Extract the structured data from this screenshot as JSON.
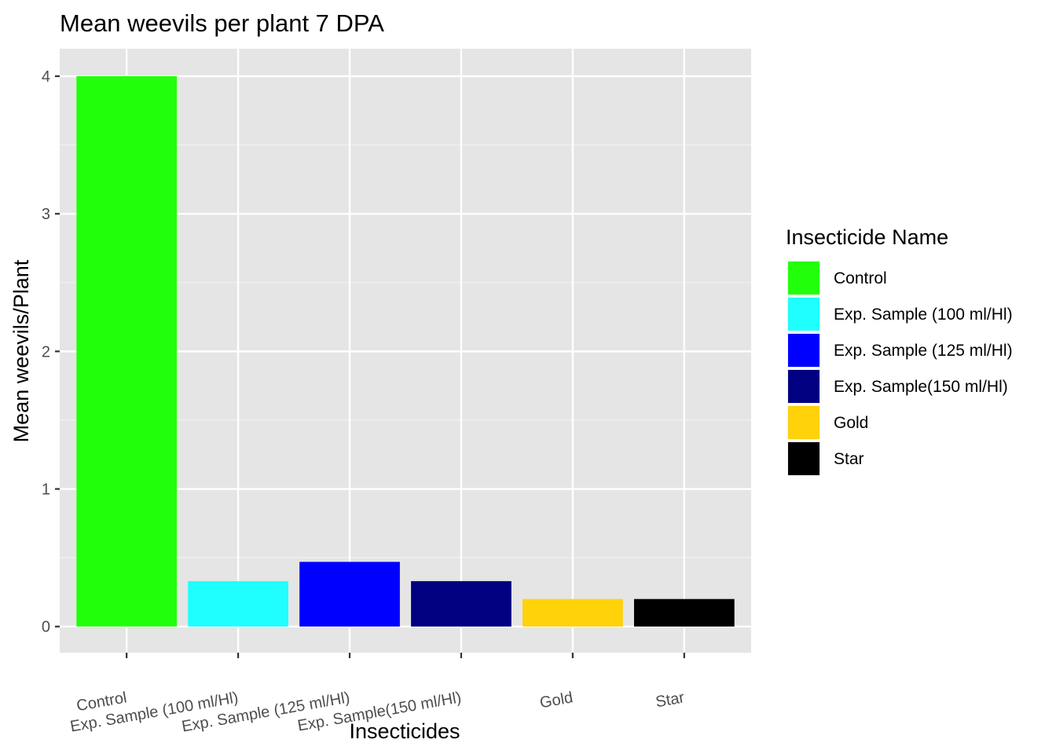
{
  "chart_data": {
    "type": "bar",
    "title": "Mean weevils per plant 7 DPA",
    "xlabel": "Insecticides",
    "ylabel": "Mean weevils/Plant",
    "categories": [
      "Control",
      "Exp. Sample (100 ml/Hl)",
      "Exp. Sample (125 ml/Hl)",
      "Exp. Sample(150 ml/Hl)",
      "Gold",
      "Star"
    ],
    "values": [
      4.0,
      0.33,
      0.47,
      0.33,
      0.2,
      0.2
    ],
    "colors": [
      "#22ff0b",
      "#1fffff",
      "#0000ff",
      "#000080",
      "#ffd20a",
      "#000000"
    ],
    "ylim": [
      -0.19,
      4.2
    ],
    "yticks": [
      0,
      1,
      2,
      3,
      4
    ],
    "panel_background": "#e5e5e5",
    "grid": true,
    "legend": {
      "title": "Insecticide Name",
      "placement": "right",
      "entries": [
        "Control",
        "Exp. Sample (100 ml/Hl)",
        "Exp. Sample (125 ml/Hl)",
        "Exp. Sample(150 ml/Hl)",
        "Gold",
        "Star"
      ]
    }
  }
}
